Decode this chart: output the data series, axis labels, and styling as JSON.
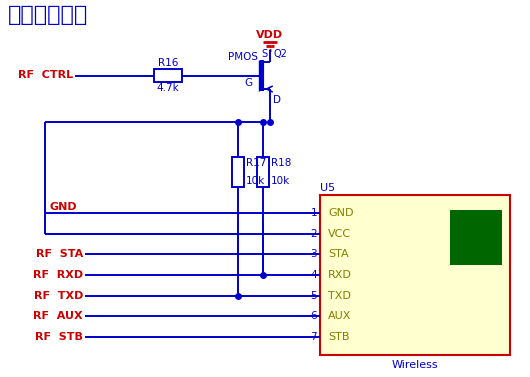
{
  "title": "无线模块接口",
  "title_color": "#0000CC",
  "title_fontsize": 16,
  "bg_color": "#FFFFFF",
  "line_color": "#0000CC",
  "red_color": "#CC0000",
  "dark_color": "#000000",
  "olive_color": "#808000",
  "component_bg": "#FFFFD0",
  "green_rect_color": "#006600",
  "labels": {
    "VDD": "VDD",
    "Q2": "Q2",
    "S": "S",
    "PMOS": "PMOS",
    "G": "G",
    "D": "D",
    "R16": "R16",
    "R16_val": "4.7k",
    "R17": "R17",
    "R17_val": "10k",
    "R18": "R18",
    "R18_val": "10k",
    "RF_CTRL": "RF  CTRL",
    "GND": "GND",
    "U5": "U5",
    "Wireless": "Wireless",
    "pin_numbers": [
      "1",
      "2",
      "3",
      "4",
      "5",
      "6",
      "7"
    ],
    "pin_names": [
      "GND",
      "VCC",
      "STA",
      "RXD",
      "TXD",
      "AUX",
      "STB"
    ],
    "rf_labels": [
      "RF  STA",
      "RF  RXD",
      "RF  TXD",
      "RF  AUX",
      "RF  STB"
    ]
  }
}
